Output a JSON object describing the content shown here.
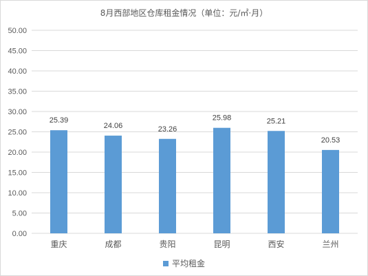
{
  "chart_data": {
    "type": "bar",
    "title": "8月西部地区仓库租金情况（单位：元/㎡·月）",
    "categories": [
      "重庆",
      "成都",
      "贵阳",
      "昆明",
      "西安",
      "兰州"
    ],
    "series": [
      {
        "name": "平均租金",
        "values": [
          25.39,
          24.06,
          23.26,
          25.98,
          25.21,
          20.53
        ]
      }
    ],
    "data_labels": [
      "25.39",
      "24.06",
      "23.26",
      "25.98",
      "25.21",
      "20.53"
    ],
    "ylim": [
      0,
      50
    ],
    "y_ticks": [
      "0.00",
      "5.00",
      "10.00",
      "15.00",
      "20.00",
      "25.00",
      "30.00",
      "35.00",
      "40.00",
      "45.00",
      "50.00"
    ],
    "grid": true,
    "legend_position": "bottom",
    "colors": {
      "bar": "#5b9bd5",
      "grid": "#d9d9d9"
    }
  }
}
